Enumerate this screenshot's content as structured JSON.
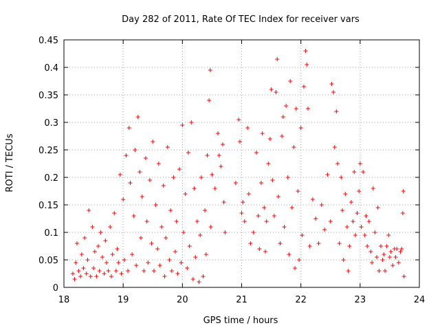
{
  "chart_data": {
    "type": "scatter",
    "title": "Day 282 of 2011, Rate Of TEC Index for receiver vars",
    "xlabel": "GPS time / hours",
    "ylabel": "ROTI / TECUs",
    "xlim": [
      18,
      24
    ],
    "ylim": [
      0,
      0.45
    ],
    "xticks": [
      18,
      19,
      20,
      21,
      22,
      23,
      24
    ],
    "yticks": [
      0,
      0.05,
      0.1,
      0.15,
      0.2,
      0.25,
      0.3,
      0.35,
      0.4,
      0.45
    ],
    "xtick_labels": [
      "18",
      "19",
      "20",
      "21",
      "22",
      "23",
      "24"
    ],
    "ytick_labels": [
      "0",
      "0.05",
      "0.1",
      "0.15",
      "0.2",
      "0.25",
      "0.3",
      "0.35",
      "0.4",
      "0.45"
    ],
    "grid": true,
    "marker": "+",
    "color": "#ff0000",
    "series": [
      {
        "name": "vars",
        "points": [
          [
            18.15,
            0.025
          ],
          [
            18.18,
            0.015
          ],
          [
            18.2,
            0.045
          ],
          [
            18.22,
            0.08
          ],
          [
            18.25,
            0.03
          ],
          [
            18.28,
            0.02
          ],
          [
            18.3,
            0.06
          ],
          [
            18.33,
            0.035
          ],
          [
            18.35,
            0.09
          ],
          [
            18.38,
            0.025
          ],
          [
            18.4,
            0.05
          ],
          [
            18.42,
            0.14
          ],
          [
            18.45,
            0.02
          ],
          [
            18.48,
            0.11
          ],
          [
            18.5,
            0.035
          ],
          [
            18.52,
            0.065
          ],
          [
            18.55,
            0.02
          ],
          [
            18.58,
            0.075
          ],
          [
            18.6,
            0.03
          ],
          [
            18.62,
            0.1
          ],
          [
            18.65,
            0.055
          ],
          [
            18.68,
            0.025
          ],
          [
            18.7,
            0.085
          ],
          [
            18.72,
            0.045
          ],
          [
            18.75,
            0.03
          ],
          [
            18.78,
            0.11
          ],
          [
            18.8,
            0.02
          ],
          [
            18.82,
            0.06
          ],
          [
            18.85,
            0.135
          ],
          [
            18.88,
            0.03
          ],
          [
            18.9,
            0.07
          ],
          [
            18.92,
            0.045
          ],
          [
            18.95,
            0.205
          ],
          [
            18.97,
            0.025
          ],
          [
            19.0,
            0.16
          ],
          [
            19.02,
            0.05
          ],
          [
            19.05,
            0.24
          ],
          [
            19.08,
            0.03
          ],
          [
            19.1,
            0.29
          ],
          [
            19.12,
            0.19
          ],
          [
            19.15,
            0.06
          ],
          [
            19.18,
            0.13
          ],
          [
            19.2,
            0.25
          ],
          [
            19.22,
            0.04
          ],
          [
            19.25,
            0.31
          ],
          [
            19.28,
            0.21
          ],
          [
            19.3,
            0.09
          ],
          [
            19.32,
            0.165
          ],
          [
            19.35,
            0.03
          ],
          [
            19.38,
            0.235
          ],
          [
            19.4,
            0.12
          ],
          [
            19.42,
            0.045
          ],
          [
            19.45,
            0.195
          ],
          [
            19.48,
            0.08
          ],
          [
            19.5,
            0.265
          ],
          [
            19.52,
            0.03
          ],
          [
            19.55,
            0.15
          ],
          [
            19.58,
            0.07
          ],
          [
            19.6,
            0.225
          ],
          [
            19.62,
            0.04
          ],
          [
            19.65,
            0.11
          ],
          [
            19.68,
            0.185
          ],
          [
            19.7,
            0.02
          ],
          [
            19.72,
            0.09
          ],
          [
            19.75,
            0.255
          ],
          [
            19.78,
            0.05
          ],
          [
            19.8,
            0.14
          ],
          [
            19.82,
            0.03
          ],
          [
            19.85,
            0.2
          ],
          [
            19.88,
            0.065
          ],
          [
            19.9,
            0.12
          ],
          [
            19.92,
            0.025
          ],
          [
            19.95,
            0.215
          ],
          [
            19.98,
            0.045
          ],
          [
            20.0,
            0.295
          ],
          [
            20.02,
            0.1
          ],
          [
            20.05,
            0.17
          ],
          [
            20.08,
            0.035
          ],
          [
            20.1,
            0.245
          ],
          [
            20.12,
            0.075
          ],
          [
            20.15,
            0.3
          ],
          [
            20.18,
            0.015
          ],
          [
            20.2,
            0.18
          ],
          [
            20.22,
            0.055
          ],
          [
            20.25,
            0.12
          ],
          [
            20.28,
            0.01
          ],
          [
            20.3,
            0.095
          ],
          [
            20.32,
            0.2
          ],
          [
            20.35,
            0.02
          ],
          [
            20.38,
            0.14
          ],
          [
            20.4,
            0.06
          ],
          [
            20.42,
            0.24
          ],
          [
            20.45,
            0.34
          ],
          [
            20.47,
            0.395
          ],
          [
            20.48,
            0.11
          ],
          [
            20.5,
            0.205
          ],
          [
            20.55,
            0.18
          ],
          [
            20.6,
            0.28
          ],
          [
            20.62,
            0.24
          ],
          [
            20.65,
            0.22
          ],
          [
            20.68,
            0.26
          ],
          [
            20.7,
            0.155
          ],
          [
            20.72,
            0.1
          ],
          [
            20.9,
            0.19
          ],
          [
            20.95,
            0.305
          ],
          [
            20.97,
            0.265
          ],
          [
            21.0,
            0.135
          ],
          [
            21.02,
            0.155
          ],
          [
            21.05,
            0.12
          ],
          [
            21.1,
            0.29
          ],
          [
            21.12,
            0.17
          ],
          [
            21.15,
            0.08
          ],
          [
            21.2,
            0.1
          ],
          [
            21.25,
            0.245
          ],
          [
            21.28,
            0.13
          ],
          [
            21.3,
            0.07
          ],
          [
            21.33,
            0.19
          ],
          [
            21.35,
            0.28
          ],
          [
            21.38,
            0.145
          ],
          [
            21.4,
            0.065
          ],
          [
            21.42,
            0.12
          ],
          [
            21.45,
            0.225
          ],
          [
            21.48,
            0.27
          ],
          [
            21.5,
            0.36
          ],
          [
            21.52,
            0.195
          ],
          [
            21.55,
            0.13
          ],
          [
            21.58,
            0.355
          ],
          [
            21.6,
            0.415
          ],
          [
            21.62,
            0.165
          ],
          [
            21.65,
            0.08
          ],
          [
            21.68,
            0.275
          ],
          [
            21.7,
            0.31
          ],
          [
            21.72,
            0.11
          ],
          [
            21.75,
            0.33
          ],
          [
            21.78,
            0.2
          ],
          [
            21.8,
            0.06
          ],
          [
            21.82,
            0.375
          ],
          [
            21.85,
            0.145
          ],
          [
            21.88,
            0.255
          ],
          [
            21.9,
            0.035
          ],
          [
            21.92,
            0.325
          ],
          [
            21.95,
            0.175
          ],
          [
            21.97,
            0.05
          ],
          [
            22.0,
            0.29
          ],
          [
            22.02,
            0.095
          ],
          [
            22.05,
            0.365
          ],
          [
            22.08,
            0.43
          ],
          [
            22.1,
            0.405
          ],
          [
            22.12,
            0.325
          ],
          [
            22.15,
            0.075
          ],
          [
            22.2,
            0.16
          ],
          [
            22.25,
            0.125
          ],
          [
            22.3,
            0.08
          ],
          [
            22.35,
            0.15
          ],
          [
            22.4,
            0.105
          ],
          [
            22.45,
            0.205
          ],
          [
            22.5,
            0.12
          ],
          [
            22.52,
            0.37
          ],
          [
            22.55,
            0.355
          ],
          [
            22.57,
            0.255
          ],
          [
            22.6,
            0.32
          ],
          [
            22.62,
            0.225
          ],
          [
            22.65,
            0.08
          ],
          [
            22.68,
            0.2
          ],
          [
            22.7,
            0.14
          ],
          [
            22.72,
            0.05
          ],
          [
            22.75,
            0.17
          ],
          [
            22.78,
            0.11
          ],
          [
            22.8,
            0.03
          ],
          [
            22.82,
            0.075
          ],
          [
            22.85,
            0.155
          ],
          [
            22.88,
            0.12
          ],
          [
            22.9,
            0.21
          ],
          [
            22.92,
            0.095
          ],
          [
            22.95,
            0.135
          ],
          [
            22.98,
            0.175
          ],
          [
            23.0,
            0.225
          ],
          [
            23.02,
            0.11
          ],
          [
            23.05,
            0.21
          ],
          [
            23.08,
            0.095
          ],
          [
            23.1,
            0.13
          ],
          [
            23.12,
            0.075
          ],
          [
            23.15,
            0.12
          ],
          [
            23.18,
            0.065
          ],
          [
            23.2,
            0.045
          ],
          [
            23.22,
            0.18
          ],
          [
            23.25,
            0.1
          ],
          [
            23.28,
            0.055
          ],
          [
            23.3,
            0.145
          ],
          [
            23.32,
            0.03
          ],
          [
            23.35,
            0.075
          ],
          [
            23.38,
            0.05
          ],
          [
            23.4,
            0.06
          ],
          [
            23.42,
            0.03
          ],
          [
            23.45,
            0.075
          ],
          [
            23.48,
            0.095
          ],
          [
            23.5,
            0.055
          ],
          [
            23.52,
            0.065
          ],
          [
            23.55,
            0.04
          ],
          [
            23.58,
            0.07
          ],
          [
            23.6,
            0.055
          ],
          [
            23.62,
            0.07
          ],
          [
            23.65,
            0.045
          ],
          [
            23.68,
            0.065
          ],
          [
            23.7,
            0.07
          ],
          [
            23.72,
            0.135
          ],
          [
            23.73,
            0.175
          ],
          [
            23.74,
            0.02
          ]
        ]
      }
    ]
  }
}
